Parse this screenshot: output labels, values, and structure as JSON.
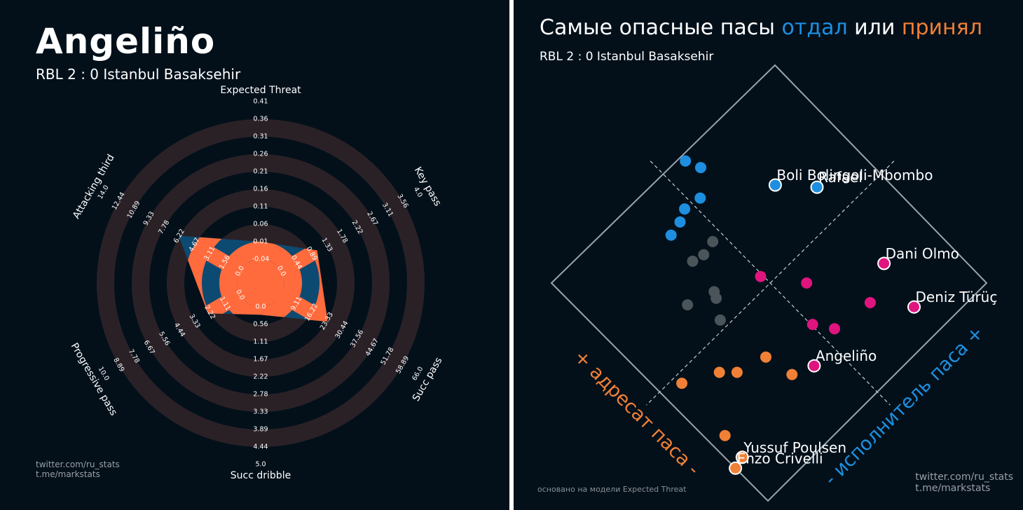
{
  "left": {
    "title": "Angeliño",
    "subtitle": "RBL 2 : 0 Istanbul Basaksehir",
    "credits": "twitter.com/ru_stats\nt.me/markstats"
  },
  "right": {
    "title_parts": [
      "Самые опасные пасы ",
      "отдал",
      " или ",
      "принял"
    ],
    "subtitle": "RBL 2 : 0 Istanbul Basaksehir",
    "credits": "twitter.com/ru_stats\nt.me/markstats",
    "model_note": "основано на модели Expected Threat"
  },
  "colors": {
    "background": "#03101a",
    "ring": "#2a2127",
    "radar_blue": "#0d4a72",
    "radar_orange": "#ff6b3d",
    "giver": "#1e8fe0",
    "receiver": "#f08036",
    "both": "#e0147f",
    "neutral": "#4a5459"
  },
  "chart_data": [
    {
      "type": "radar",
      "axes": [
        {
          "name": "Expected Threat",
          "ticks": [
            "-0.04",
            "0.01",
            "0.06",
            "0.11",
            "0.16",
            "0.21",
            "0.26",
            "0.31",
            "0.36",
            "0.41"
          ],
          "range": [
            -0.04,
            0.41
          ]
        },
        {
          "name": "Key pass",
          "ticks": [
            "0.0",
            "0.44",
            "0.89",
            "1.33",
            "1.78",
            "2.22",
            "2.67",
            "3.11",
            "3.56",
            "4.0"
          ],
          "range": [
            0,
            4
          ]
        },
        {
          "name": "Succ pass",
          "ticks": [
            "9.11",
            "16.22",
            "23.33",
            "30.44",
            "37.56",
            "44.67",
            "51.78",
            "58.89",
            "66.0"
          ],
          "range": [
            2,
            66
          ]
        },
        {
          "name": "Succ dribble",
          "ticks": [
            "0.0",
            "0.56",
            "1.11",
            "1.67",
            "2.22",
            "2.78",
            "3.33",
            "3.89",
            "4.44",
            "5.0"
          ],
          "range": [
            0,
            5
          ]
        },
        {
          "name": "Progressive pass",
          "ticks": [
            "0.0",
            "1.11",
            "2.22",
            "3.33",
            "4.44",
            "5.56",
            "6.67",
            "7.78",
            "8.89",
            "10.0"
          ],
          "range": [
            0,
            10
          ]
        },
        {
          "name": "Attacking third",
          "ticks": [
            "0.0",
            "1.56",
            "3.11",
            "4.67",
            "6.22",
            "7.78",
            "9.33",
            "10.89",
            "12.44",
            "14.0"
          ],
          "range": [
            0,
            14
          ]
        }
      ],
      "values": [
        0.01,
        1.05,
        23.8,
        0.25,
        2.35,
        6.3
      ]
    },
    {
      "type": "scatter",
      "x_axis_label": "- исполнитель паса +",
      "y_axis_label": "+ адресат паса -",
      "categories": [
        "both",
        "giver",
        "receiver",
        "neutral"
      ],
      "points": [
        {
          "label": "Deniz Türüç",
          "giver": 0.77,
          "receiver": 0.88,
          "cat": "both"
        },
        {
          "label": "Dani Olmo",
          "giver": 0.8,
          "receiver": 0.71,
          "cat": "both"
        },
        {
          "label": "",
          "giver": 0.68,
          "receiver": 0.77,
          "cat": "both"
        },
        {
          "label": "",
          "giver": 0.54,
          "receiver": 0.75,
          "cat": "both"
        },
        {
          "label": "Angeliño",
          "giver": 0.41,
          "receiver": 0.79,
          "cat": "both"
        },
        {
          "label": "",
          "giver": 0.5,
          "receiver": 0.69,
          "cat": "both"
        },
        {
          "label": "",
          "giver": 0.58,
          "receiver": 0.58,
          "cat": "both"
        },
        {
          "label": "",
          "giver": 0.49,
          "receiver": 0.46,
          "cat": "both"
        },
        {
          "label": "Rafael",
          "giver": 0.82,
          "receiver": 0.38,
          "cat": "giver"
        },
        {
          "label": "Boli Bolingoli-Mbombo",
          "giver": 0.73,
          "receiver": 0.28,
          "cat": "giver"
        },
        {
          "label": "",
          "giver": 0.53,
          "receiver": 0.14,
          "cat": "giver"
        },
        {
          "label": "",
          "giver": 0.6,
          "receiver": 0.07,
          "cat": "giver"
        },
        {
          "label": "",
          "giver": 0.58,
          "receiver": 0.02,
          "cat": "giver"
        },
        {
          "label": "",
          "giver": 0.47,
          "receiver": 0.13,
          "cat": "giver"
        },
        {
          "label": "",
          "giver": 0.43,
          "receiver": 0.15,
          "cat": "giver"
        },
        {
          "label": "",
          "giver": 0.38,
          "receiver": 0.16,
          "cat": "giver"
        },
        {
          "label": "Yussuf Poulsen",
          "giver": 0.04,
          "receiver": 0.84,
          "cat": "receiver"
        },
        {
          "label": "Enzo Crivelli",
          "giver": 0.0,
          "receiver": 0.85,
          "cat": "receiver"
        },
        {
          "label": "",
          "giver": 0.05,
          "receiver": 0.75,
          "cat": "receiver"
        },
        {
          "label": "",
          "giver": 0.34,
          "receiver": 0.76,
          "cat": "receiver"
        },
        {
          "label": "",
          "giver": 0.32,
          "receiver": 0.66,
          "cat": "receiver"
        },
        {
          "label": "",
          "giver": 0.22,
          "receiver": 0.63,
          "cat": "receiver"
        },
        {
          "label": "",
          "giver": 0.18,
          "receiver": 0.59,
          "cat": "receiver"
        },
        {
          "label": "",
          "giver": 0.07,
          "receiver": 0.53,
          "cat": "receiver"
        },
        {
          "label": "",
          "giver": 0.3,
          "receiver": 0.47,
          "cat": "neutral"
        },
        {
          "label": "",
          "giver": 0.34,
          "receiver": 0.41,
          "cat": "neutral"
        },
        {
          "label": "",
          "giver": 0.35,
          "receiver": 0.39,
          "cat": "neutral"
        },
        {
          "label": "",
          "giver": 0.26,
          "receiver": 0.36,
          "cat": "neutral"
        },
        {
          "label": "",
          "giver": 0.41,
          "receiver": 0.28,
          "cat": "neutral"
        },
        {
          "label": "",
          "giver": 0.46,
          "receiver": 0.27,
          "cat": "neutral"
        },
        {
          "label": "",
          "giver": 0.37,
          "receiver": 0.27,
          "cat": "neutral"
        }
      ]
    }
  ]
}
